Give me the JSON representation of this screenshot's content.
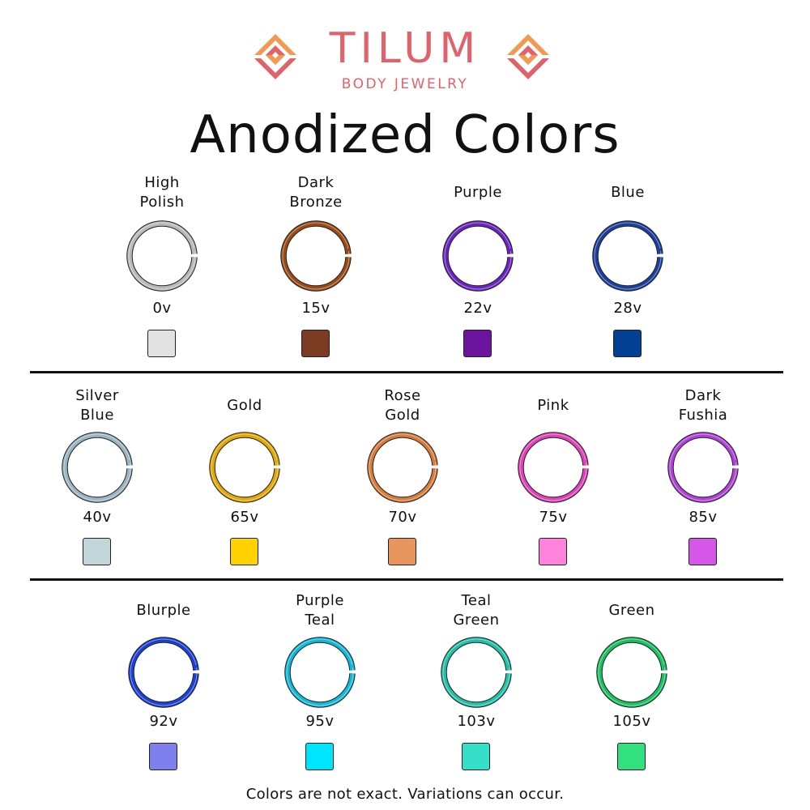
{
  "brand": {
    "name": "TILUM",
    "tagline": "BODY JEWELRY",
    "primary_color": "#e0636c",
    "accent_color": "#f29a4f"
  },
  "title": "Anodized Colors",
  "rows": [
    [
      {
        "label": [
          "High",
          "Polish"
        ],
        "voltage": "0v",
        "ring_color": "#b8b8b8",
        "swatch": "#e2e2e2"
      },
      {
        "label": [
          "Dark",
          "Bronze"
        ],
        "voltage": "15v",
        "ring_color": "#9a4a14",
        "swatch": "#7a3b22"
      },
      {
        "label": [
          "Purple"
        ],
        "voltage": "22v",
        "ring_color": "#6a22c0",
        "swatch": "#6a14a0"
      },
      {
        "label": [
          "Blue"
        ],
        "voltage": "28v",
        "ring_color": "#1a3fa0",
        "swatch": "#033f93"
      }
    ],
    [
      {
        "label": [
          "Silver",
          "Blue"
        ],
        "voltage": "40v",
        "ring_color": "#9ab4c2",
        "swatch": "#c2d5d9"
      },
      {
        "label": [
          "Gold"
        ],
        "voltage": "65v",
        "ring_color": "#e0a800",
        "swatch": "#ffd200"
      },
      {
        "label": [
          "Rose",
          "Gold"
        ],
        "voltage": "70v",
        "ring_color": "#d87a3a",
        "swatch": "#e8955e"
      },
      {
        "label": [
          "Pink"
        ],
        "voltage": "75v",
        "ring_color": "#e040b8",
        "swatch": "#ff83db"
      },
      {
        "label": [
          "Dark",
          "Fushia"
        ],
        "voltage": "85v",
        "ring_color": "#b040d8",
        "swatch": "#d457e8"
      }
    ],
    [
      {
        "label": [
          "Blurple"
        ],
        "voltage": "92v",
        "ring_color": "#1a40d8",
        "swatch": "#7f80ee"
      },
      {
        "label": [
          "Purple",
          "Teal"
        ],
        "voltage": "95v",
        "ring_color": "#10b8d8",
        "swatch": "#00e5ff"
      },
      {
        "label": [
          "Teal",
          "Green"
        ],
        "voltage": "103v",
        "ring_color": "#20c0a8",
        "swatch": "#36e0c8"
      },
      {
        "label": [
          "Green"
        ],
        "voltage": "105v",
        "ring_color": "#18c060",
        "swatch": "#32e07f"
      }
    ]
  ],
  "footer": "Colors are not exact. Variations can occur."
}
